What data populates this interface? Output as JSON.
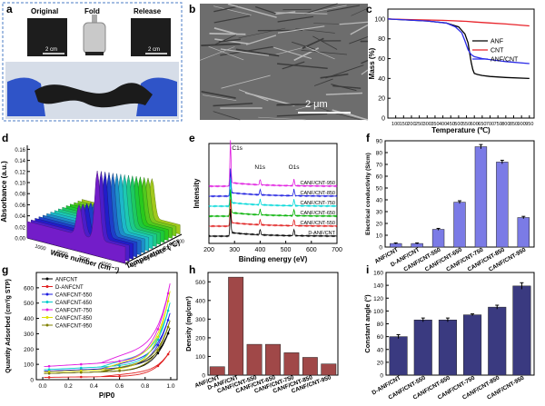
{
  "panel_letters": [
    "a",
    "b",
    "c",
    "d",
    "e",
    "f",
    "g",
    "h",
    "i"
  ],
  "photo_a": {
    "labels": [
      "Original",
      "Fold",
      "Release"
    ],
    "scale_left": "2 cm",
    "scale_right": "2 cm",
    "colors": {
      "border": "#4a7bc4",
      "film": "#1c1c1c",
      "glove": "#2f54c8"
    }
  },
  "sem_b": {
    "scale_label": "2 μm",
    "colors": {
      "bg": "#6d6d6d"
    }
  },
  "chart_data": [
    {
      "panel": "c",
      "type": "line",
      "xlabel": "Temperature (℃)",
      "ylabel": "Mass (%)",
      "xlim": [
        50,
        980
      ],
      "ylim": [
        0,
        110
      ],
      "xticks": [
        100,
        150,
        200,
        250,
        300,
        350,
        400,
        450,
        500,
        550,
        600,
        650,
        700,
        750,
        800,
        850,
        900,
        950
      ],
      "yticks": [
        0,
        20,
        40,
        60,
        80,
        100
      ],
      "series": [
        {
          "name": "ANF",
          "color": "#000000",
          "x": [
            50,
            300,
            420,
            500,
            540,
            560,
            570,
            580,
            590,
            600,
            620,
            650,
            700,
            800,
            950
          ],
          "y": [
            100,
            98,
            96,
            92,
            85,
            76,
            66,
            56,
            49,
            45,
            44,
            43,
            42,
            41,
            40
          ]
        },
        {
          "name": "CNT",
          "color": "#e8232a",
          "x": [
            50,
            200,
            300,
            400,
            500,
            550,
            600,
            700,
            800,
            950
          ],
          "y": [
            100,
            99.4,
            99,
            98.6,
            98,
            97.6,
            97,
            96,
            95,
            93
          ]
        },
        {
          "name": "ANF/CNT",
          "color": "#2a2ae8",
          "x": [
            50,
            300,
            420,
            480,
            520,
            540,
            560,
            580,
            600,
            650,
            700,
            800,
            950
          ],
          "y": [
            100,
            98,
            96,
            92,
            86,
            78,
            69,
            64,
            62,
            60,
            59,
            57,
            55
          ]
        }
      ]
    },
    {
      "panel": "d",
      "type": "area",
      "xlabel": "Wave number (cm⁻¹)",
      "ylabel": "Absorbance (a.u.)",
      "zlabel": "Temperature (℃)",
      "yticks": [
        "0.00",
        "0.02",
        "0.04",
        "0.06",
        "0.08",
        "0.10",
        "0.12",
        "0.14",
        "0.16"
      ],
      "xticks": [
        "1000",
        "2000",
        "3000",
        "4000"
      ],
      "ztick_values": [
        "100",
        "200",
        "300",
        "400",
        "500",
        "600",
        "700",
        "800"
      ],
      "peaks": [
        {
          "wavenumber": 2350,
          "absorbance": 0.085
        },
        {
          "wavenumber": 3000,
          "absorbance": 0.155
        }
      ],
      "baseline": 0.03
    },
    {
      "panel": "e",
      "type": "line",
      "xlabel": "Binding energy (eV)",
      "ylabel": "Intensity",
      "xlim": [
        200,
        700
      ],
      "xticks": [
        200,
        300,
        400,
        500,
        600,
        700
      ],
      "annotations": [
        "C1s",
        "N1s",
        "O1s"
      ],
      "series": [
        {
          "name": "CANF/CNT-950",
          "color": "#e01ee0",
          "offset": 6
        },
        {
          "name": "CANF/CNT-850",
          "color": "#2020e0",
          "offset": 5
        },
        {
          "name": "CANF/CNT-750",
          "color": "#00d8d8",
          "offset": 4
        },
        {
          "name": "CANF/CNT-650",
          "color": "#00b000",
          "offset": 3
        },
        {
          "name": "CANF/CNT-550",
          "color": "#e02020",
          "offset": 2
        },
        {
          "name": "D-ANF/CNT",
          "color": "#000000",
          "offset": 1
        }
      ]
    },
    {
      "panel": "f",
      "type": "bar",
      "ylabel": "Electrical conductivity (S/cm)",
      "ylim": [
        0,
        90
      ],
      "yticks": [
        0,
        10,
        20,
        30,
        40,
        50,
        60,
        70,
        80,
        90
      ],
      "categories": [
        "ANF/CNT",
        "D-ANF/CNT",
        "CANF/CNT-550",
        "CANF/CNT-650",
        "CANF/CNT-750",
        "CANF/CNT-850",
        "CANF/CNT-950"
      ],
      "values": [
        3,
        3,
        15,
        38,
        85,
        72,
        25
      ],
      "errors": [
        0.5,
        0.5,
        0.8,
        1.2,
        1.8,
        1.5,
        1.0
      ],
      "color": "#7b7be6"
    },
    {
      "panel": "g",
      "type": "line",
      "xlabel": "P/P0",
      "ylabel": "Quantity Adsorbed (cm³/g STP)",
      "xlim": [
        -0.05,
        1.05
      ],
      "ylim": [
        0,
        700
      ],
      "xticks": [
        "0.0",
        "0.2",
        "0.4",
        "0.6",
        "0.8",
        "1.0"
      ],
      "yticks": [
        0,
        100,
        200,
        300,
        400,
        500,
        600
      ],
      "series": [
        {
          "name": "ANFCNT",
          "color": "#000000",
          "base": 40,
          "top": 350
        },
        {
          "name": "D-ANFCNT",
          "color": "#e01e1e",
          "base": 15,
          "top": 195
        },
        {
          "name": "CANFCNT-550",
          "color": "#1e1ee0",
          "base": 55,
          "top": 450
        },
        {
          "name": "CANFCNT-650",
          "color": "#00cccc",
          "base": 65,
          "top": 520
        },
        {
          "name": "CANFCNT-750",
          "color": "#e01ee0",
          "base": 85,
          "top": 650
        },
        {
          "name": "CANFCNT-850",
          "color": "#e0e000",
          "base": 50,
          "top": 600
        },
        {
          "name": "CANFCNT-950",
          "color": "#808000",
          "base": 40,
          "top": 400
        }
      ]
    },
    {
      "panel": "h",
      "type": "bar",
      "ylabel": "Density (mg/cm³)",
      "ylim": [
        0,
        550
      ],
      "yticks": [
        0,
        100,
        200,
        300,
        400,
        500
      ],
      "categories": [
        "ANF/CNT",
        "D-ANF/CNT",
        "CANF/CNT-550",
        "CANF/CNT-650",
        "CANF/CNT-750",
        "CANF/CNT-850",
        "CANF/CNT-950"
      ],
      "values": [
        45,
        525,
        165,
        165,
        120,
        95,
        60
      ],
      "color": "#a04848"
    },
    {
      "panel": "i",
      "type": "bar",
      "ylabel": "Constant angle (°)",
      "ylim": [
        0,
        160
      ],
      "yticks": [
        0,
        20,
        40,
        60,
        80,
        100,
        120,
        140,
        160
      ],
      "categories": [
        "D-ANF/CNT",
        "CANF/CNT-550",
        "CANF/CNT-650",
        "CANF/CNT-750",
        "CANF/CNT-850",
        "CANF/CNT-950"
      ],
      "values": [
        60,
        86,
        86,
        94,
        106,
        139
      ],
      "errors": [
        3,
        3,
        3,
        1.5,
        3,
        5
      ],
      "color": "#3a3a80"
    }
  ]
}
